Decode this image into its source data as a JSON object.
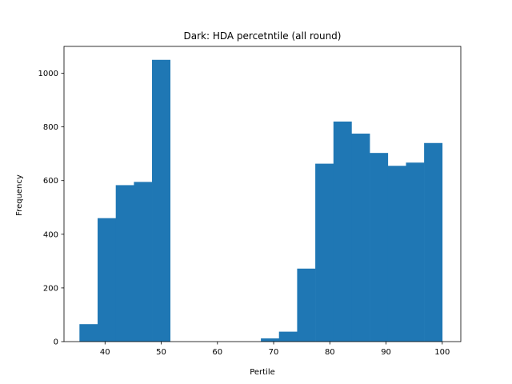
{
  "chart_data": {
    "type": "bar",
    "subtype": "histogram",
    "title": "Dark: HDA percetntile (all round)",
    "xlabel": "Pertile",
    "ylabel": "Frequency",
    "xlim": [
      32.7,
      103.3
    ],
    "ylim": [
      0,
      1100
    ],
    "xticks": [
      40,
      50,
      60,
      70,
      80,
      90,
      100
    ],
    "yticks": [
      0,
      200,
      400,
      600,
      800,
      1000
    ],
    "grid": false,
    "legend": "none",
    "color": "#1f77b4",
    "bins": [
      {
        "x0": 35.45,
        "x1": 38.68,
        "value": 65
      },
      {
        "x0": 38.68,
        "x1": 41.91,
        "value": 460
      },
      {
        "x0": 41.91,
        "x1": 45.14,
        "value": 583
      },
      {
        "x0": 45.14,
        "x1": 48.36,
        "value": 595
      },
      {
        "x0": 48.36,
        "x1": 51.59,
        "value": 1050
      },
      {
        "x0": 51.59,
        "x1": 54.82,
        "value": 0
      },
      {
        "x0": 54.82,
        "x1": 58.05,
        "value": 0
      },
      {
        "x0": 58.05,
        "x1": 61.27,
        "value": 0
      },
      {
        "x0": 61.27,
        "x1": 64.5,
        "value": 0
      },
      {
        "x0": 64.5,
        "x1": 67.73,
        "value": 0
      },
      {
        "x0": 67.73,
        "x1": 70.95,
        "value": 12
      },
      {
        "x0": 70.95,
        "x1": 74.18,
        "value": 37
      },
      {
        "x0": 74.18,
        "x1": 77.41,
        "value": 272
      },
      {
        "x0": 77.41,
        "x1": 80.64,
        "value": 663
      },
      {
        "x0": 80.64,
        "x1": 83.86,
        "value": 820
      },
      {
        "x0": 83.86,
        "x1": 87.09,
        "value": 775
      },
      {
        "x0": 87.09,
        "x1": 90.32,
        "value": 703
      },
      {
        "x0": 90.32,
        "x1": 93.55,
        "value": 655
      },
      {
        "x0": 93.55,
        "x1": 96.77,
        "value": 667
      },
      {
        "x0": 96.77,
        "x1": 100.0,
        "value": 740
      }
    ]
  }
}
